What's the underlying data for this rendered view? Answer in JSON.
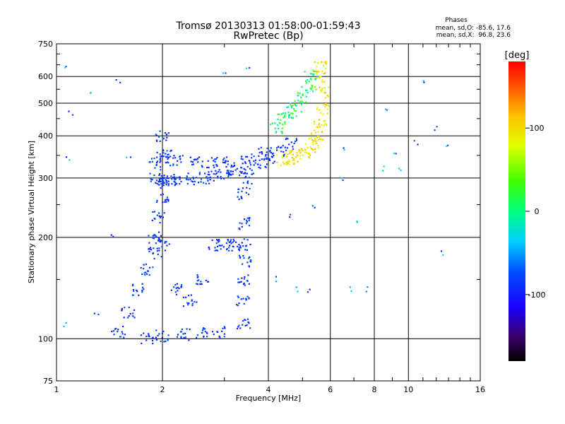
{
  "chart_data": {
    "type": "scatter",
    "title": "Tromsø 20130313 01:58:00-01:59:43",
    "subtitle": "RwPretec (Bp)",
    "xlabel": "Frequency [MHz]",
    "ylabel": "Stationary phase Virtual Height [km]",
    "x_scale": "log2",
    "y_scale": "log",
    "xlim": [
      1,
      16
    ],
    "ylim": [
      75,
      750
    ],
    "x_ticks": [
      1,
      2,
      4,
      6,
      8,
      10,
      16
    ],
    "x_tick_labels": [
      "1",
      "2",
      "4",
      "6",
      "8",
      "10",
      "16"
    ],
    "y_ticks": [
      75,
      100,
      200,
      300,
      400,
      500,
      600,
      750
    ],
    "y_tick_labels": [
      "75",
      "100",
      "200",
      "300",
      "400",
      "500",
      "600",
      "750"
    ],
    "grid": true,
    "info": {
      "heading": "Phases",
      "line1": "mean, sd,O: -85.6, 17.6",
      "line2": "mean, sd,X:  96.8, 23.6"
    },
    "colorbar": {
      "label": "[deg]",
      "min": -180,
      "max": 180,
      "ticks": [
        100,
        0,
        -100
      ],
      "tick_labels": [
        "100",
        "0",
        "-100"
      ],
      "colormap": "rainbow"
    },
    "clusters": [
      {
        "trace": "O-mode F-trace",
        "phase": -85.6,
        "phase_sd": 17.6,
        "points": [
          [
            1.9,
            300
          ],
          [
            2.0,
            295
          ],
          [
            2.1,
            295
          ],
          [
            2.2,
            297
          ],
          [
            2.4,
            298
          ],
          [
            2.6,
            300
          ],
          [
            2.8,
            305
          ],
          [
            3.0,
            310
          ],
          [
            3.2,
            315
          ],
          [
            3.5,
            320
          ],
          [
            3.8,
            330
          ],
          [
            4.0,
            345
          ],
          [
            4.3,
            360
          ],
          [
            4.6,
            380
          ]
        ]
      },
      {
        "trace": "O-mode F-layer band",
        "phase": -85.6,
        "phase_sd": 17.6,
        "points": [
          [
            1.9,
            330
          ],
          [
            2.0,
            345
          ],
          [
            2.2,
            340
          ],
          [
            2.5,
            335
          ],
          [
            2.8,
            335
          ],
          [
            3.1,
            335
          ],
          [
            3.5,
            340
          ],
          [
            3.9,
            355
          ]
        ]
      },
      {
        "trace": "O-mode low-frequency cusp",
        "phase": -85.6,
        "phase_sd": 17.6,
        "points": [
          [
            1.9,
            200
          ],
          [
            1.95,
            230
          ],
          [
            2.0,
            260
          ],
          [
            2.0,
            290
          ],
          [
            2.05,
            350
          ],
          [
            2.0,
            400
          ]
        ]
      },
      {
        "trace": "O-mode E/F1 region",
        "phase": -85.6,
        "phase_sd": 17.6,
        "points": [
          [
            1.5,
            105
          ],
          [
            1.6,
            120
          ],
          [
            1.7,
            140
          ],
          [
            1.8,
            160
          ],
          [
            1.9,
            180
          ],
          [
            2.0,
            190
          ],
          [
            2.2,
            140
          ],
          [
            2.4,
            130
          ],
          [
            2.6,
            150
          ],
          [
            2.8,
            190
          ],
          [
            3.0,
            190
          ],
          [
            3.2,
            190
          ],
          [
            1.8,
            100
          ],
          [
            2.0,
            102
          ],
          [
            2.3,
            103
          ],
          [
            2.6,
            104
          ],
          [
            2.9,
            105
          ]
        ]
      },
      {
        "trace": "O-mode vertical column near 3.4 MHz",
        "phase": -85.6,
        "phase_sd": 17.6,
        "points": [
          [
            3.4,
            110
          ],
          [
            3.4,
            130
          ],
          [
            3.4,
            150
          ],
          [
            3.45,
            170
          ],
          [
            3.4,
            190
          ],
          [
            3.45,
            220
          ],
          [
            3.4,
            270
          ],
          [
            3.45,
            300
          ]
        ]
      },
      {
        "trace": "X-mode trace",
        "phase": 96.8,
        "phase_sd": 23.6,
        "points": [
          [
            4.4,
            340
          ],
          [
            4.6,
            342
          ],
          [
            4.8,
            348
          ],
          [
            5.0,
            355
          ],
          [
            5.2,
            365
          ],
          [
            5.4,
            380
          ],
          [
            5.5,
            400
          ],
          [
            5.6,
            430
          ],
          [
            5.7,
            480
          ],
          [
            5.7,
            540
          ],
          [
            5.65,
            600
          ],
          [
            5.6,
            640
          ]
        ]
      },
      {
        "trace": "Mixed X/O upper branch",
        "phase": 10,
        "points": [
          [
            4.2,
            420
          ],
          [
            4.4,
            450
          ],
          [
            4.6,
            470
          ],
          [
            4.8,
            490
          ],
          [
            5.0,
            520
          ],
          [
            5.2,
            560
          ],
          [
            5.3,
            600
          ]
        ]
      },
      {
        "trace": "Scattered returns",
        "phase": -60,
        "points": [
          [
            1.05,
            110
          ],
          [
            1.05,
            650
          ],
          [
            1.08,
            340
          ],
          [
            1.1,
            470
          ],
          [
            1.25,
            540
          ],
          [
            1.3,
            120
          ],
          [
            1.45,
            200
          ],
          [
            1.5,
            580
          ],
          [
            1.6,
            350
          ],
          [
            3.0,
            620
          ],
          [
            3.5,
            640
          ],
          [
            4.2,
            150
          ],
          [
            4.8,
            140
          ],
          [
            5.2,
            140
          ],
          [
            6.5,
            300
          ],
          [
            6.8,
            140
          ],
          [
            7.2,
            220
          ],
          [
            7.7,
            140
          ],
          [
            8.5,
            320
          ],
          [
            9.5,
            320
          ],
          [
            10.5,
            380
          ],
          [
            11.0,
            580
          ],
          [
            12.0,
            420
          ],
          [
            12.5,
            180
          ],
          [
            8.7,
            480
          ],
          [
            9.2,
            360
          ],
          [
            6.6,
            370
          ],
          [
            5.4,
            250
          ],
          [
            4.6,
            230
          ],
          [
            13.0,
            370
          ]
        ]
      }
    ]
  }
}
